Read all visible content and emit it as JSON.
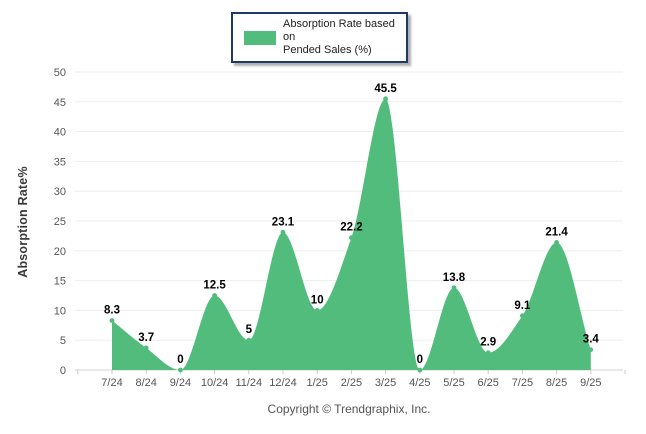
{
  "legend": {
    "line1": "Absorption Rate based on",
    "line2": "Pended Sales (%)"
  },
  "footer": {
    "copyright": "Copyright © Trendgraphix, Inc."
  },
  "chart_data": {
    "type": "area",
    "title": "",
    "series_name": "Absorption Rate based on Pended Sales (%)",
    "categories": [
      "7/24",
      "8/24",
      "9/24",
      "10/24",
      "11/24",
      "12/24",
      "1/25",
      "2/25",
      "3/25",
      "4/25",
      "5/25",
      "6/25",
      "7/25",
      "8/25",
      "9/25"
    ],
    "values": [
      8.3,
      3.7,
      0,
      12.5,
      5,
      23.1,
      10,
      22.2,
      45.5,
      0,
      13.8,
      2.9,
      9.1,
      21.4,
      3.4
    ],
    "xlabel": "",
    "ylabel": "Absorption Rate%",
    "ylim": [
      0,
      50
    ],
    "ytick_step": 5,
    "grid": "horizontal",
    "legend_position": "top-center",
    "colors": {
      "area_fill": "#52bc7c",
      "marker_fill": "#52bc7c",
      "data_label_text": "#000000",
      "tick_text": "#555555",
      "gridline": "#ededed",
      "axis_line": "#d6d6d6",
      "tick_mark": "#c9c9c9",
      "legend_border": "#1f3a68"
    }
  }
}
